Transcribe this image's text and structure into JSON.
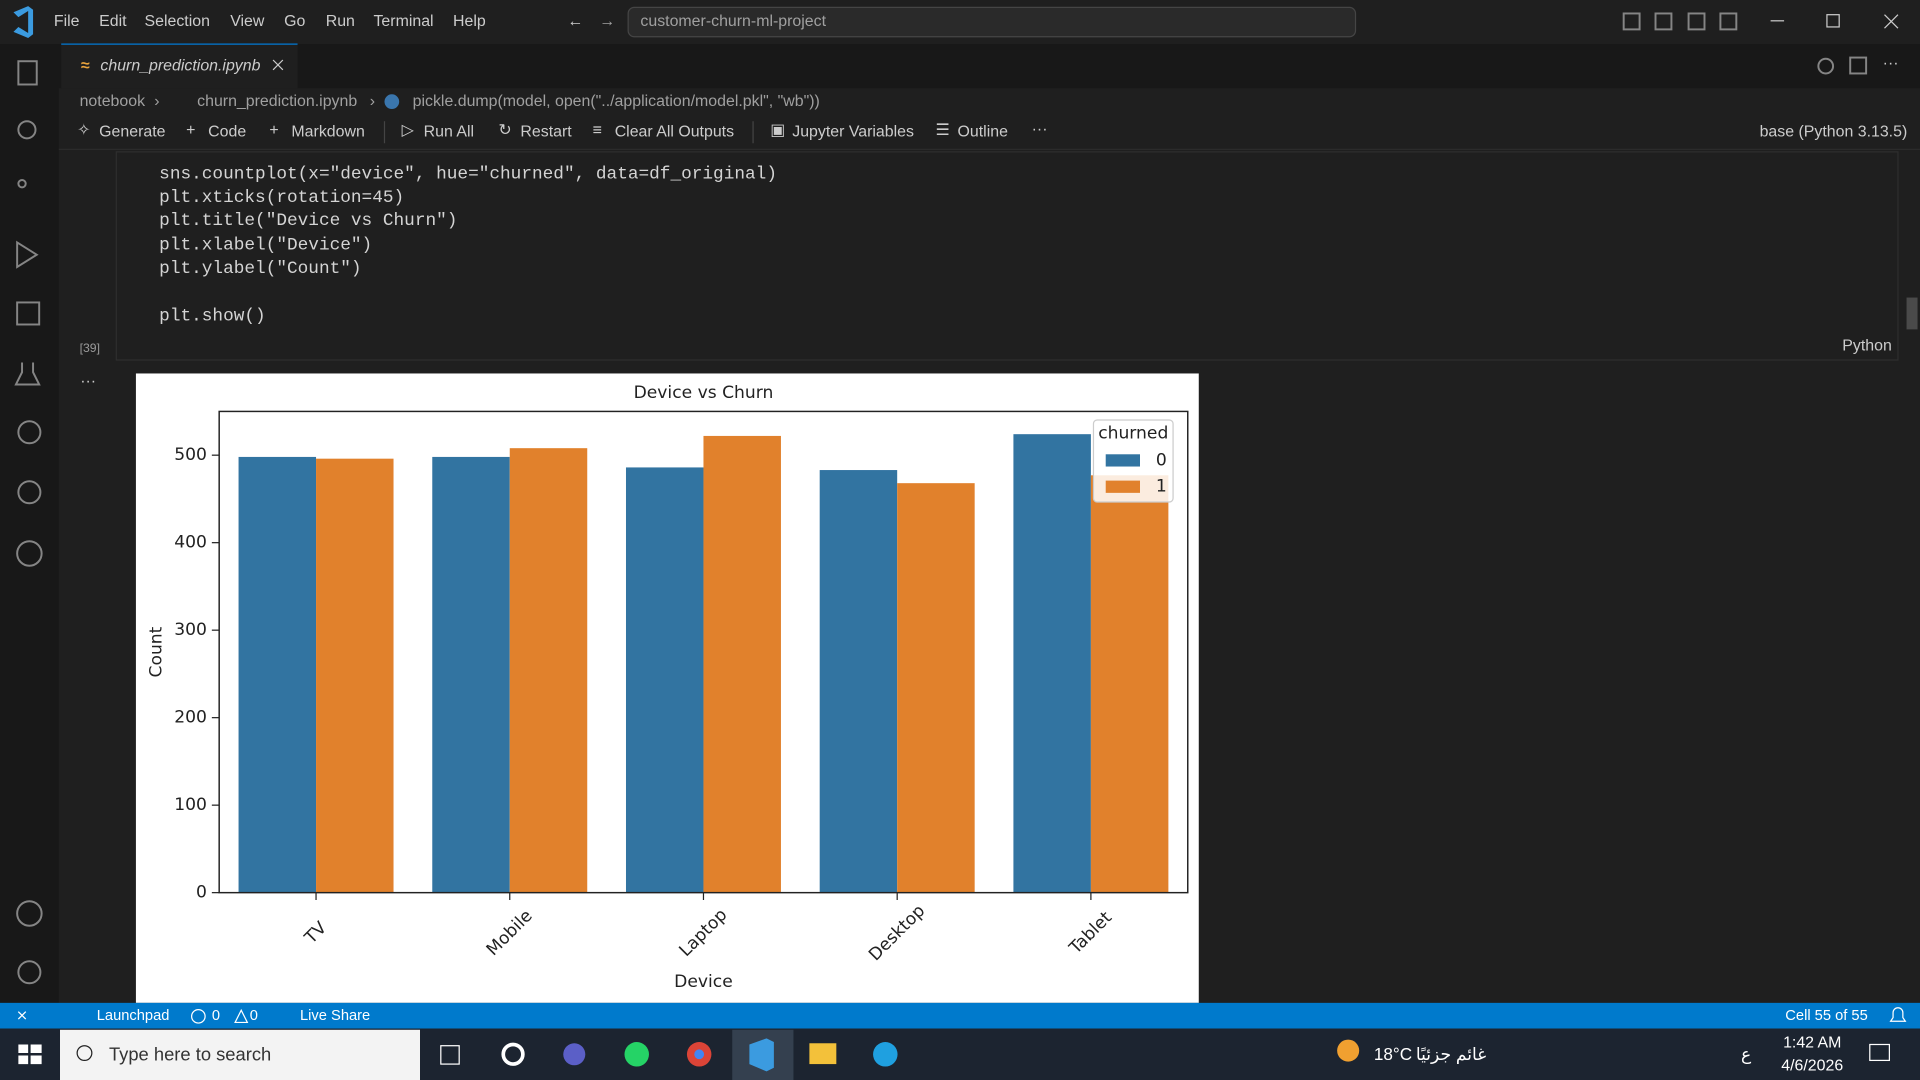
{
  "menu": [
    "File",
    "Edit",
    "Selection",
    "View",
    "Go",
    "Run",
    "Terminal",
    "Help"
  ],
  "search": "customer-churn-ml-project",
  "tab": "churn_prediction.ipynb",
  "breadcrumb": [
    "notebook",
    "churn_prediction.ipynb",
    "pickle.dump(model, open(\"../application/model.pkl\", \"wb\"))"
  ],
  "toolbar": [
    "Generate",
    "Code",
    "Markdown",
    "Run All",
    "Restart",
    "Clear All Outputs",
    "Jupyter Variables",
    "Outline"
  ],
  "kernel": "base (Python 3.13.5)",
  "cell": {
    "code": [
      "sns.countplot(x=\"device\", hue=\"churned\", data=df_original)",
      "plt.xticks(rotation=45)",
      "plt.title(\"Device vs Churn\")",
      "plt.xlabel(\"Device\")",
      "plt.ylabel(\"Count\")",
      "plt.show()"
    ],
    "execution_count": "[39]",
    "language": "Python"
  },
  "chart_data": {
    "type": "bar",
    "title": "Device vs Churn",
    "x_label": "Device",
    "y_label": "Count",
    "categories": [
      "TV",
      "Mobile",
      "Laptop",
      "Desktop",
      "Tablet"
    ],
    "series": [
      {
        "name": "0",
        "color": "#3274a1",
        "values": [
          498,
          498,
          486,
          483,
          524
        ]
      },
      {
        "name": "1",
        "color": "#e1812c",
        "values": [
          496,
          508,
          522,
          468,
          477
        ]
      }
    ],
    "ylim": [
      0,
      550
    ],
    "yticks": [
      0,
      100,
      200,
      300,
      400,
      500
    ],
    "legend_title": "churned",
    "legend": "upper right"
  },
  "status_bar": {
    "launchpad": "Launchpad",
    "errors": "0",
    "warnings": "0",
    "live_share": "Live Share",
    "cell": "Cell 55 of 55"
  },
  "taskbar": {
    "search": "Type here to search",
    "temperature": "18°C",
    "weather": "غائم جزئيًا",
    "language": "ع",
    "time": "1:42 AM",
    "date": "4/6/2026"
  }
}
